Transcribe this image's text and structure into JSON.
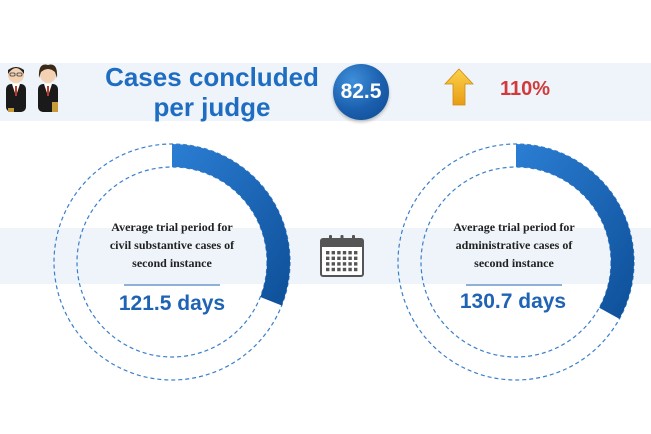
{
  "headline": {
    "line1": "Cases concluded",
    "line2": "per judge"
  },
  "cases_per_judge": "82.5",
  "ratio_text": "110%",
  "icons": {
    "judges": "judge-figures-icon",
    "arrow": "up-arrow-icon",
    "calendar": "calendar-icon"
  },
  "colors": {
    "accent_blue": "#1e6dc2",
    "dark_blue": "#0f4a8e",
    "ratio_red": "#d13a3a",
    "band": "#eef4fa"
  },
  "chart_data": [
    {
      "type": "pie",
      "label_lines": [
        "Average trial period for",
        "civil substantive cases of",
        "second instance"
      ],
      "value_text": "121.5 days",
      "value": 121.5,
      "unit": "days",
      "highlighted_fraction": 0.31
    },
    {
      "type": "pie",
      "label_lines": [
        "Average trial period for",
        "administrative cases of",
        "second instance"
      ],
      "value_text": "130.7 days",
      "value": 130.7,
      "unit": "days",
      "highlighted_fraction": 0.33
    }
  ]
}
